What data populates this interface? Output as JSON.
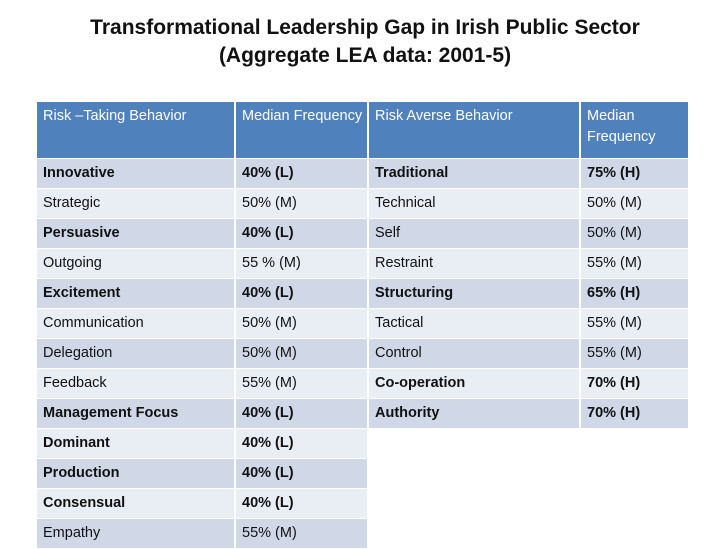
{
  "title": {
    "line1": "Transformational Leadership Gap in Irish Public Sector",
    "line2": "(Aggregate LEA data: 2001-5)"
  },
  "table": {
    "headers": [
      "Risk –Taking Behavior",
      "Median Frequency",
      "Risk Averse Behavior",
      "Median Frequency"
    ],
    "rows": [
      [
        "Innovative",
        "40% (L)",
        "Traditional",
        "75% (H)"
      ],
      [
        "Strategic",
        "50% (M)",
        "Technical",
        "50% (M)"
      ],
      [
        "Persuasive",
        "40% (L)",
        "Self",
        "50% (M)"
      ],
      [
        "Outgoing",
        "55 % (M)",
        "Restraint",
        "55% (M)"
      ],
      [
        "Excitement",
        "40% (L)",
        "Structuring",
        "65% (H)"
      ],
      [
        "Communication",
        "50% (M)",
        "Tactical",
        "55% (M)"
      ],
      [
        "Delegation",
        "50% (M)",
        "Control",
        "55% (M)"
      ],
      [
        "Feedback",
        "55% (M)",
        "Co-operation",
        "70% (H)"
      ],
      [
        "Management Focus",
        "40% (L)",
        "Authority",
        "70% (H)"
      ],
      [
        "Dominant",
        "40% (L)",
        "",
        ""
      ],
      [
        "Production",
        "40% (L)",
        "",
        ""
      ],
      [
        "Consensual",
        "40% (L)",
        "",
        ""
      ],
      [
        "Empathy",
        "55% (M)",
        "",
        ""
      ]
    ]
  }
}
